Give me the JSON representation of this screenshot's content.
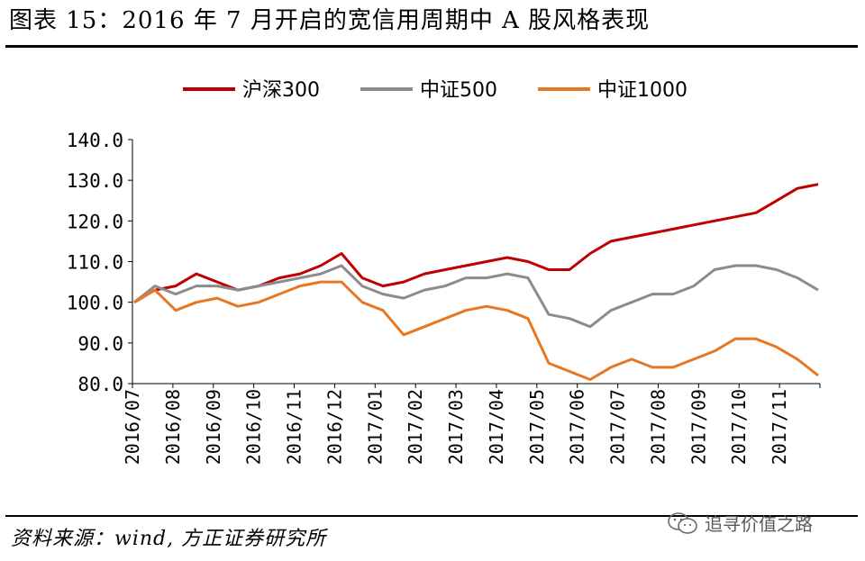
{
  "header": {
    "title": "图表 15：2016 年 7 月开启的宽信用周期中 A 股风格表现"
  },
  "footer": {
    "source": "资料来源：wind, 方正证券研究所",
    "watermark_text": "追寻价值之路",
    "watermark_icon": "wechat-icon"
  },
  "chart_data": {
    "type": "line",
    "title": "",
    "xlabel": "",
    "ylabel": "",
    "ylim": [
      80,
      140
    ],
    "yticks": [
      "80.0",
      "90.0",
      "100.0",
      "110.0",
      "120.0",
      "130.0",
      "140.0"
    ],
    "xtick_labels": [
      "2016/07",
      "2016/08",
      "2016/09",
      "2016/10",
      "2016/11",
      "2016/12",
      "2017/01",
      "2017/02",
      "2017/03",
      "2017/04",
      "2017/05",
      "2017/06",
      "2017/07",
      "2017/08",
      "2017/09",
      "2017/10",
      "2017/11"
    ],
    "x": [
      "2016/07",
      "2016/07",
      "2016/08",
      "2016/08",
      "2016/09",
      "2016/09",
      "2016/10",
      "2016/10",
      "2016/11",
      "2016/11",
      "2016/12",
      "2016/12",
      "2017/01",
      "2017/01",
      "2017/02",
      "2017/02",
      "2017/03",
      "2017/03",
      "2017/04",
      "2017/04",
      "2017/05",
      "2017/05",
      "2017/06",
      "2017/06",
      "2017/07",
      "2017/07",
      "2017/08",
      "2017/08",
      "2017/09",
      "2017/09",
      "2017/10",
      "2017/10",
      "2017/11",
      "2017/11"
    ],
    "grid": false,
    "legend_position": "top",
    "series": [
      {
        "name": "沪深300",
        "color": "#C00000",
        "values": [
          100,
          103,
          104,
          107,
          105,
          103,
          104,
          106,
          107,
          109,
          112,
          106,
          104,
          105,
          107,
          108,
          109,
          110,
          111,
          110,
          108,
          108,
          112,
          115,
          116,
          117,
          118,
          119,
          120,
          121,
          122,
          125,
          128,
          129
        ]
      },
      {
        "name": "中证500",
        "color": "#8C8C8C",
        "values": [
          100,
          104,
          102,
          104,
          104,
          103,
          104,
          105,
          106,
          107,
          109,
          104,
          102,
          101,
          103,
          104,
          106,
          106,
          107,
          106,
          97,
          96,
          94,
          98,
          100,
          102,
          102,
          104,
          108,
          109,
          109,
          108,
          106,
          103
        ]
      },
      {
        "name": "中证1000",
        "color": "#E87722",
        "values": [
          100,
          103,
          98,
          100,
          101,
          99,
          100,
          102,
          104,
          105,
          105,
          100,
          98,
          92,
          94,
          96,
          98,
          99,
          98,
          96,
          85,
          83,
          81,
          84,
          86,
          84,
          84,
          86,
          88,
          91,
          91,
          89,
          86,
          82
        ]
      }
    ]
  }
}
